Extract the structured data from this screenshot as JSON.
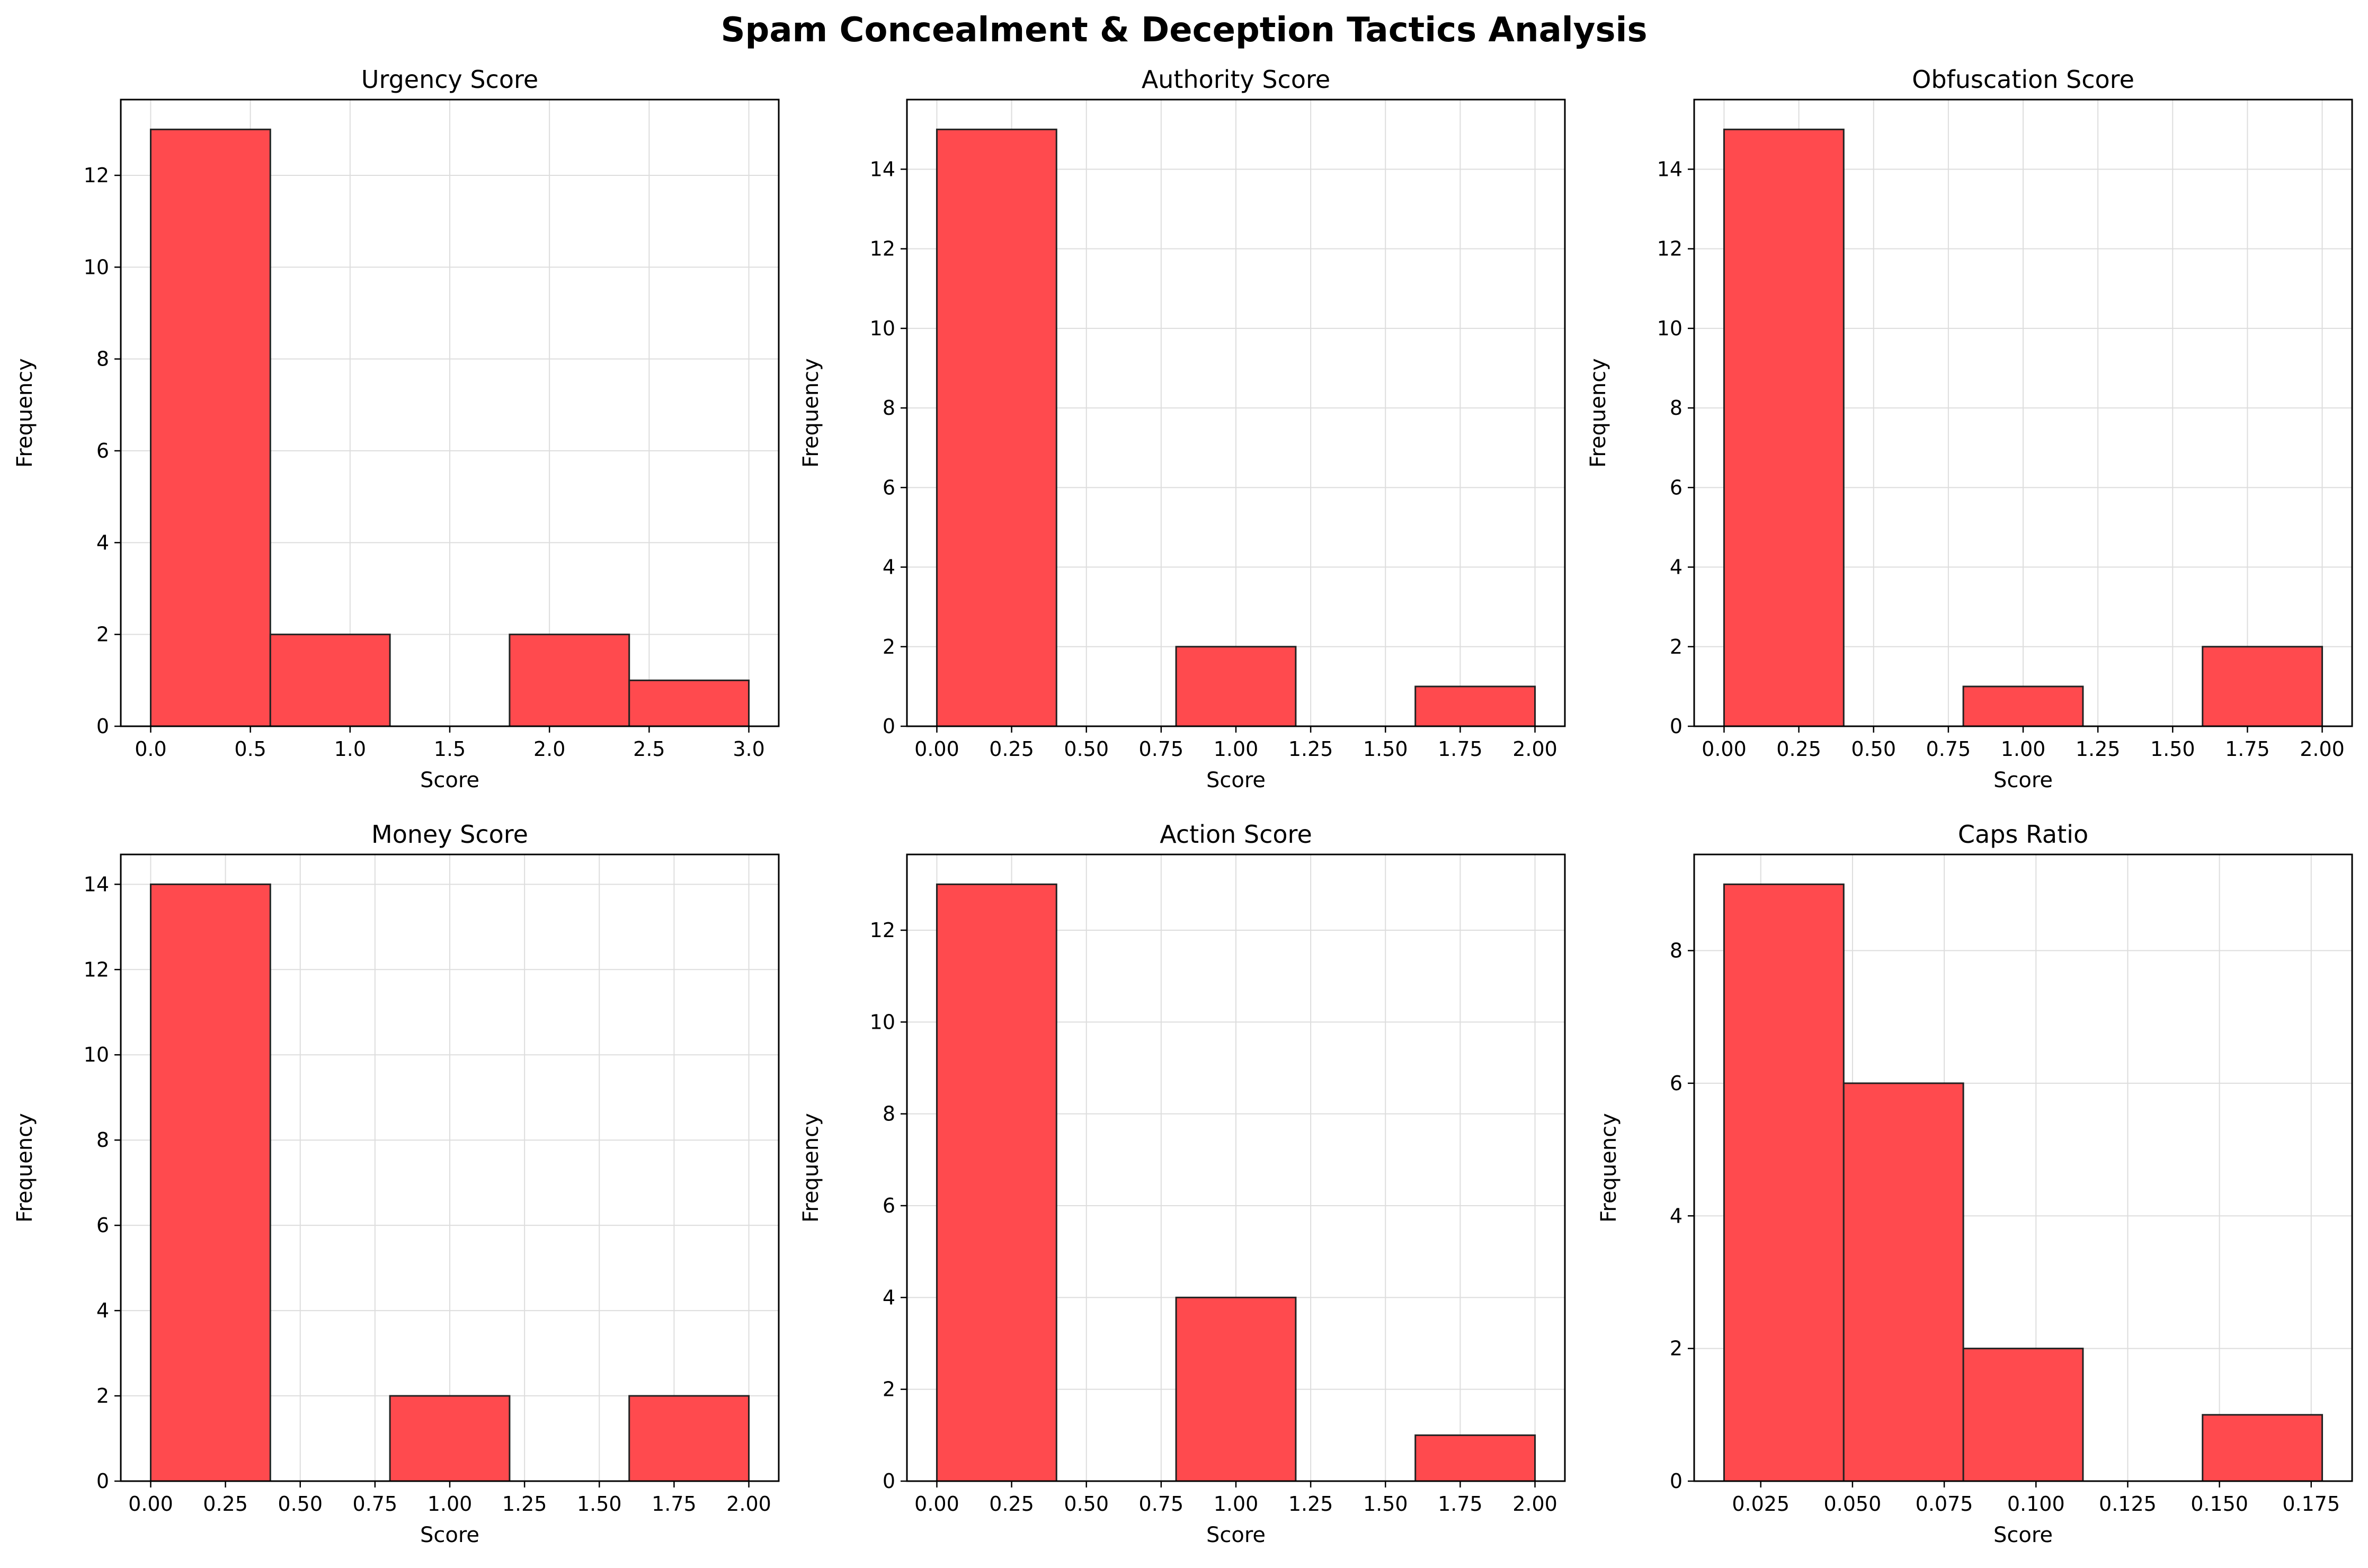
{
  "figure": {
    "title": "Spam Concealment & Deception Tactics Analysis"
  },
  "style": {
    "bar_color": "#ff4a4e",
    "edge_color": "#222222",
    "grid_color": "#dddddd"
  },
  "chart_data": [
    {
      "type": "bar",
      "title": "Urgency Score",
      "xlabel": "Score",
      "ylabel": "Frequency",
      "bin_edges": [
        0,
        0.6,
        1.2,
        1.8,
        2.4,
        3.0
      ],
      "values": [
        13,
        2,
        0,
        2,
        1
      ],
      "xlim": [
        -0.15,
        3.15
      ],
      "ylim": [
        0,
        13.65
      ],
      "xticks": [
        0,
        0.5,
        1.0,
        1.5,
        2.0,
        2.5,
        3.0
      ],
      "xtick_labels": [
        "0.0",
        "0.5",
        "1.0",
        "1.5",
        "2.0",
        "2.5",
        "3.0"
      ],
      "yticks": [
        0,
        2,
        4,
        6,
        8,
        10,
        12
      ],
      "ytick_labels": [
        "0",
        "2",
        "4",
        "6",
        "8",
        "10",
        "12"
      ],
      "grid": true
    },
    {
      "type": "bar",
      "title": "Authority Score",
      "xlabel": "Score",
      "ylabel": "Frequency",
      "bin_edges": [
        0,
        0.4,
        0.8,
        1.2,
        1.6,
        2.0
      ],
      "values": [
        15,
        0,
        2,
        0,
        1
      ],
      "xlim": [
        -0.1,
        2.1
      ],
      "ylim": [
        0,
        15.75
      ],
      "xticks": [
        0,
        0.25,
        0.5,
        0.75,
        1.0,
        1.25,
        1.5,
        1.75,
        2.0
      ],
      "xtick_labels": [
        "0.00",
        "0.25",
        "0.50",
        "0.75",
        "1.00",
        "1.25",
        "1.50",
        "1.75",
        "2.00"
      ],
      "yticks": [
        0,
        2,
        4,
        6,
        8,
        10,
        12,
        14
      ],
      "ytick_labels": [
        "0",
        "2",
        "4",
        "6",
        "8",
        "10",
        "12",
        "14"
      ],
      "grid": true
    },
    {
      "type": "bar",
      "title": "Obfuscation Score",
      "xlabel": "Score",
      "ylabel": "Frequency",
      "bin_edges": [
        0,
        0.4,
        0.8,
        1.2,
        1.6,
        2.0
      ],
      "values": [
        15,
        0,
        1,
        0,
        2
      ],
      "xlim": [
        -0.1,
        2.1
      ],
      "ylim": [
        0,
        15.75
      ],
      "xticks": [
        0,
        0.25,
        0.5,
        0.75,
        1.0,
        1.25,
        1.5,
        1.75,
        2.0
      ],
      "xtick_labels": [
        "0.00",
        "0.25",
        "0.50",
        "0.75",
        "1.00",
        "1.25",
        "1.50",
        "1.75",
        "2.00"
      ],
      "yticks": [
        0,
        2,
        4,
        6,
        8,
        10,
        12,
        14
      ],
      "ytick_labels": [
        "0",
        "2",
        "4",
        "6",
        "8",
        "10",
        "12",
        "14"
      ],
      "grid": true
    },
    {
      "type": "bar",
      "title": "Money Score",
      "xlabel": "Score",
      "ylabel": "Frequency",
      "bin_edges": [
        0,
        0.4,
        0.8,
        1.2,
        1.6,
        2.0
      ],
      "values": [
        14,
        0,
        2,
        0,
        2
      ],
      "xlim": [
        -0.1,
        2.1
      ],
      "ylim": [
        0,
        14.7
      ],
      "xticks": [
        0,
        0.25,
        0.5,
        0.75,
        1.0,
        1.25,
        1.5,
        1.75,
        2.0
      ],
      "xtick_labels": [
        "0.00",
        "0.25",
        "0.50",
        "0.75",
        "1.00",
        "1.25",
        "1.50",
        "1.75",
        "2.00"
      ],
      "yticks": [
        0,
        2,
        4,
        6,
        8,
        10,
        12,
        14
      ],
      "ytick_labels": [
        "0",
        "2",
        "4",
        "6",
        "8",
        "10",
        "12",
        "14"
      ],
      "grid": true
    },
    {
      "type": "bar",
      "title": "Action Score",
      "xlabel": "Score",
      "ylabel": "Frequency",
      "bin_edges": [
        0,
        0.4,
        0.8,
        1.2,
        1.6,
        2.0
      ],
      "values": [
        13,
        0,
        4,
        0,
        1
      ],
      "xlim": [
        -0.1,
        2.1
      ],
      "ylim": [
        0,
        13.65
      ],
      "xticks": [
        0,
        0.25,
        0.5,
        0.75,
        1.0,
        1.25,
        1.5,
        1.75,
        2.0
      ],
      "xtick_labels": [
        "0.00",
        "0.25",
        "0.50",
        "0.75",
        "1.00",
        "1.25",
        "1.50",
        "1.75",
        "2.00"
      ],
      "yticks": [
        0,
        2,
        4,
        6,
        8,
        10,
        12
      ],
      "ytick_labels": [
        "0",
        "2",
        "4",
        "6",
        "8",
        "10",
        "12"
      ],
      "grid": true
    },
    {
      "type": "bar",
      "title": "Caps Ratio",
      "xlabel": "Score",
      "ylabel": "Frequency",
      "bin_edges": [
        0.015,
        0.0476,
        0.0802,
        0.1128,
        0.1454,
        0.178
      ],
      "values": [
        9,
        6,
        2,
        0,
        1
      ],
      "xlim": [
        0.00685,
        0.18615
      ],
      "ylim": [
        0,
        9.45
      ],
      "xticks": [
        0.025,
        0.05,
        0.075,
        0.1,
        0.125,
        0.15,
        0.175
      ],
      "xtick_labels": [
        "0.025",
        "0.050",
        "0.075",
        "0.100",
        "0.125",
        "0.150",
        "0.175"
      ],
      "yticks": [
        0,
        2,
        4,
        6,
        8
      ],
      "ytick_labels": [
        "0",
        "2",
        "4",
        "6",
        "8"
      ],
      "grid": true
    }
  ]
}
